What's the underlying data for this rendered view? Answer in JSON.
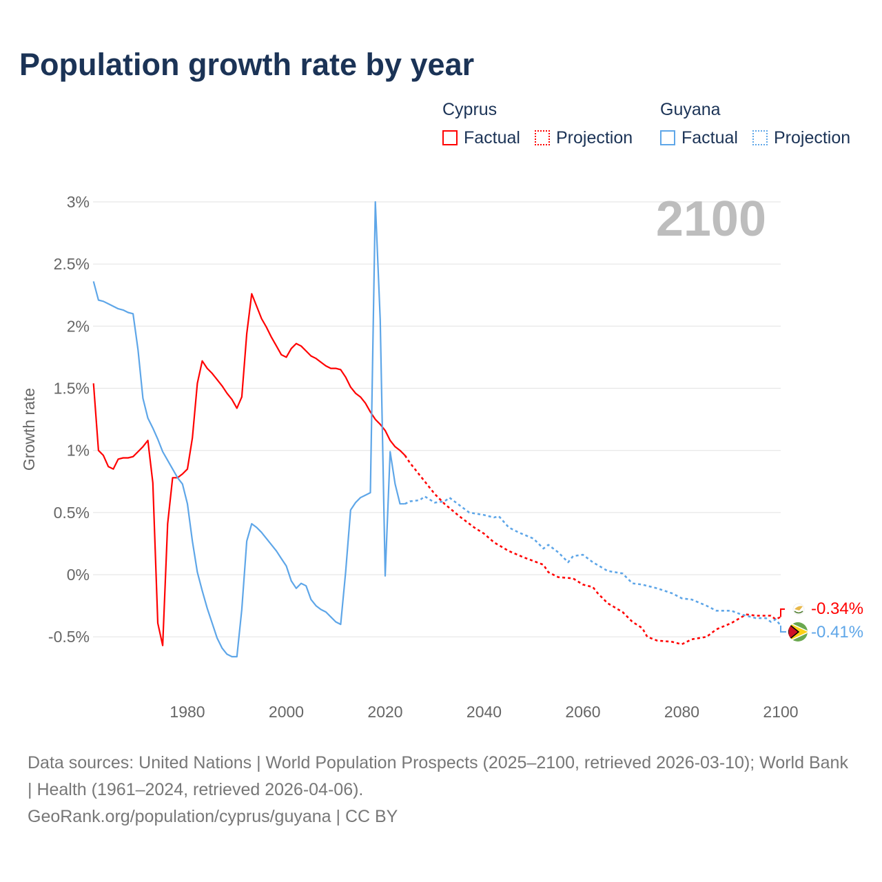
{
  "title": "Population growth rate by year",
  "legend": {
    "cyprus": {
      "name": "Cyprus",
      "factual": "Factual",
      "projection": "Projection"
    },
    "guyana": {
      "name": "Guyana",
      "factual": "Factual",
      "projection": "Projection"
    }
  },
  "current_year_label": "2100",
  "end_labels": {
    "cyprus": "-0.34%",
    "guyana": "-0.41%"
  },
  "footer": {
    "sources": "Data sources: United Nations | World Population Prospects (2025–2100, retrieved 2026-03-10); World Bank | Health (1961–2024, retrieved 2026-04-06).",
    "link": "GeoRank.org/population/cyprus/guyana | CC BY"
  },
  "colors": {
    "cyprus": "#ff0000",
    "guyana": "#5ea6e8",
    "title": "#1b3356"
  },
  "chart_data": {
    "type": "line",
    "title": "Population growth rate by year",
    "xlabel": "",
    "ylabel": "Growth rate",
    "xlim": [
      1961,
      2100
    ],
    "ylim": [
      -0.8,
      3.1
    ],
    "x_ticks": [
      1980,
      2000,
      2020,
      2040,
      2060,
      2080,
      2100
    ],
    "x_tick_labels": [
      "1980",
      "2000",
      "2020",
      "2040",
      "2060",
      "2080",
      "2100"
    ],
    "y_ticks": [
      3,
      2.5,
      2,
      1.5,
      1,
      0.5,
      0,
      -0.5
    ],
    "y_tick_labels": [
      "3%",
      "2.5%",
      "2%",
      "1.5%",
      "1%",
      "0.5%",
      "0%",
      "-0.5%"
    ],
    "grid": true,
    "legend_position": "top-right",
    "series": [
      {
        "name": "Cyprus Factual",
        "color": "#ff0000",
        "dash": false,
        "x": [
          1961,
          1962,
          1963,
          1964,
          1965,
          1966,
          1967,
          1968,
          1969,
          1970,
          1971,
          1972,
          1973,
          1974,
          1975,
          1976,
          1977,
          1978,
          1979,
          1980,
          1981,
          1982,
          1983,
          1984,
          1985,
          1986,
          1987,
          1988,
          1989,
          1990,
          1991,
          1992,
          1993,
          1994,
          1995,
          1996,
          1997,
          1998,
          1999,
          2000,
          2001,
          2002,
          2003,
          2004,
          2005,
          2006,
          2007,
          2008,
          2009,
          2010,
          2011,
          2012,
          2013,
          2014,
          2015,
          2016,
          2017,
          2018,
          2019,
          2020,
          2021,
          2022,
          2023,
          2024
        ],
        "y": [
          1.54,
          1.0,
          0.96,
          0.87,
          0.85,
          0.93,
          0.94,
          0.94,
          0.95,
          0.99,
          1.03,
          1.08,
          0.74,
          -0.39,
          -0.57,
          0.41,
          0.78,
          0.78,
          0.81,
          0.85,
          1.1,
          1.54,
          1.72,
          1.66,
          1.62,
          1.57,
          1.52,
          1.46,
          1.41,
          1.34,
          1.43,
          1.94,
          2.26,
          2.16,
          2.06,
          1.99,
          1.91,
          1.84,
          1.77,
          1.75,
          1.82,
          1.86,
          1.84,
          1.8,
          1.76,
          1.74,
          1.71,
          1.68,
          1.66,
          1.66,
          1.65,
          1.59,
          1.51,
          1.46,
          1.43,
          1.38,
          1.31,
          1.25,
          1.21,
          1.16,
          1.08,
          1.03,
          1.0,
          0.96
        ]
      },
      {
        "name": "Cyprus Projection",
        "color": "#ff0000",
        "dash": true,
        "x": [
          2024,
          2025,
          2027,
          2030,
          2032,
          2035,
          2038,
          2040,
          2042,
          2045,
          2048,
          2050,
          2052,
          2053,
          2055,
          2058,
          2060,
          2062,
          2063,
          2065,
          2068,
          2070,
          2072,
          2073,
          2075,
          2078,
          2080,
          2082,
          2085,
          2087,
          2090,
          2093,
          2095,
          2098,
          2099,
          2100
        ],
        "y": [
          0.96,
          0.9,
          0.8,
          0.65,
          0.57,
          0.47,
          0.38,
          0.33,
          0.26,
          0.19,
          0.14,
          0.11,
          0.08,
          0.02,
          -0.02,
          -0.03,
          -0.08,
          -0.1,
          -0.15,
          -0.23,
          -0.3,
          -0.38,
          -0.43,
          -0.5,
          -0.53,
          -0.54,
          -0.56,
          -0.52,
          -0.5,
          -0.44,
          -0.39,
          -0.32,
          -0.33,
          -0.33,
          -0.36,
          -0.34
        ]
      },
      {
        "name": "Guyana Factual",
        "color": "#5ea6e8",
        "dash": false,
        "x": [
          1961,
          1962,
          1963,
          1964,
          1965,
          1966,
          1967,
          1968,
          1969,
          1970,
          1971,
          1972,
          1973,
          1974,
          1975,
          1976,
          1977,
          1978,
          1979,
          1980,
          1981,
          1982,
          1983,
          1984,
          1985,
          1986,
          1987,
          1988,
          1989,
          1990,
          1991,
          1992,
          1993,
          1994,
          1995,
          1996,
          1997,
          1998,
          1999,
          2000,
          2001,
          2002,
          2003,
          2004,
          2005,
          2006,
          2007,
          2008,
          2009,
          2010,
          2011,
          2012,
          2013,
          2014,
          2015,
          2016,
          2017,
          2018,
          2019,
          2020,
          2021,
          2022,
          2023,
          2024
        ],
        "y": [
          2.36,
          2.21,
          2.2,
          2.18,
          2.16,
          2.14,
          2.13,
          2.11,
          2.1,
          1.81,
          1.42,
          1.26,
          1.18,
          1.09,
          0.99,
          0.92,
          0.85,
          0.78,
          0.73,
          0.57,
          0.27,
          0.02,
          -0.13,
          -0.27,
          -0.39,
          -0.51,
          -0.59,
          -0.64,
          -0.66,
          -0.66,
          -0.28,
          0.27,
          0.41,
          0.38,
          0.34,
          0.29,
          0.24,
          0.19,
          0.13,
          0.07,
          -0.05,
          -0.11,
          -0.07,
          -0.09,
          -0.2,
          -0.25,
          -0.28,
          -0.3,
          -0.34,
          -0.38,
          -0.4,
          0.02,
          0.52,
          0.58,
          0.62,
          0.64,
          0.66,
          3.0,
          2.05,
          -0.01,
          0.99,
          0.73,
          0.57,
          0.57
        ]
      },
      {
        "name": "Guyana Projection",
        "color": "#5ea6e8",
        "dash": true,
        "x": [
          2024,
          2025,
          2027,
          2028,
          2030,
          2032,
          2033,
          2035,
          2037,
          2040,
          2042,
          2043,
          2045,
          2047,
          2050,
          2052,
          2053,
          2055,
          2057,
          2058,
          2060,
          2062,
          2065,
          2068,
          2070,
          2072,
          2075,
          2078,
          2080,
          2082,
          2085,
          2087,
          2090,
          2092,
          2095,
          2097,
          2098,
          2099,
          2100
        ],
        "y": [
          0.57,
          0.59,
          0.6,
          0.63,
          0.58,
          0.59,
          0.62,
          0.56,
          0.5,
          0.48,
          0.46,
          0.47,
          0.38,
          0.34,
          0.29,
          0.21,
          0.24,
          0.18,
          0.1,
          0.15,
          0.16,
          0.1,
          0.03,
          0.01,
          -0.07,
          -0.08,
          -0.11,
          -0.15,
          -0.19,
          -0.2,
          -0.25,
          -0.29,
          -0.29,
          -0.32,
          -0.35,
          -0.35,
          -0.38,
          -0.36,
          -0.41
        ]
      }
    ]
  }
}
